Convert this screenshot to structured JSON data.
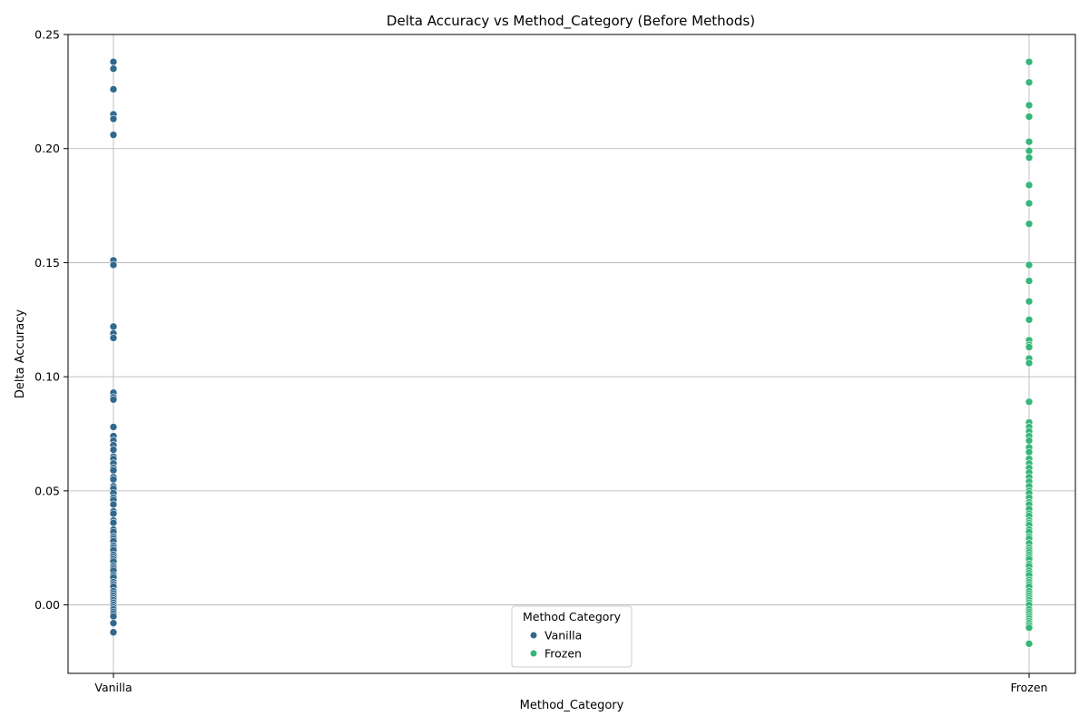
{
  "chart_data": {
    "type": "scatter",
    "title": "Delta Accuracy vs Method_Category (Before Methods)",
    "xlabel": "Method_Category",
    "ylabel": "Delta Accuracy",
    "categories": [
      "Vanilla",
      "Frozen"
    ],
    "ylim": [
      -0.03,
      0.25
    ],
    "yticks": [
      0.0,
      0.05,
      0.1,
      0.15,
      0.2,
      0.25
    ],
    "ytick_labels": [
      "0.00",
      "0.05",
      "0.10",
      "0.15",
      "0.20",
      "0.25"
    ],
    "grid": true,
    "legend": {
      "title": "Method Category",
      "placement": "bottom-center"
    },
    "series": [
      {
        "name": "Vanilla",
        "color": "#31688e",
        "category": "Vanilla",
        "values": [
          0.238,
          0.235,
          0.226,
          0.215,
          0.213,
          0.206,
          0.151,
          0.149,
          0.122,
          0.119,
          0.117,
          0.093,
          0.091,
          0.09,
          0.078,
          0.074,
          0.072,
          0.07,
          0.068,
          0.065,
          0.064,
          0.062,
          0.06,
          0.059,
          0.056,
          0.055,
          0.052,
          0.051,
          0.049,
          0.047,
          0.046,
          0.044,
          0.041,
          0.04,
          0.037,
          0.036,
          0.033,
          0.032,
          0.03,
          0.029,
          0.028,
          0.026,
          0.025,
          0.024,
          0.022,
          0.021,
          0.02,
          0.019,
          0.017,
          0.016,
          0.015,
          0.013,
          0.012,
          0.01,
          0.009,
          0.008,
          0.006,
          0.005,
          0.004,
          0.003,
          0.002,
          0.001,
          0.0,
          -0.001,
          -0.002,
          -0.003,
          -0.004,
          -0.005,
          -0.008,
          -0.012
        ]
      },
      {
        "name": "Frozen",
        "color": "#35b779",
        "category": "Frozen",
        "values": [
          0.238,
          0.229,
          0.219,
          0.214,
          0.203,
          0.199,
          0.196,
          0.184,
          0.176,
          0.167,
          0.149,
          0.142,
          0.133,
          0.125,
          0.116,
          0.114,
          0.113,
          0.108,
          0.106,
          0.089,
          0.08,
          0.078,
          0.076,
          0.074,
          0.072,
          0.069,
          0.067,
          0.064,
          0.062,
          0.06,
          0.058,
          0.056,
          0.054,
          0.052,
          0.05,
          0.049,
          0.047,
          0.045,
          0.044,
          0.042,
          0.04,
          0.039,
          0.037,
          0.036,
          0.035,
          0.033,
          0.032,
          0.03,
          0.029,
          0.027,
          0.025,
          0.024,
          0.023,
          0.022,
          0.021,
          0.02,
          0.018,
          0.017,
          0.015,
          0.014,
          0.013,
          0.011,
          0.01,
          0.009,
          0.008,
          0.006,
          0.005,
          0.004,
          0.003,
          0.002,
          0.001,
          0.0,
          -0.002,
          -0.003,
          -0.004,
          -0.005,
          -0.006,
          -0.007,
          -0.008,
          -0.009,
          -0.01,
          -0.017
        ]
      }
    ]
  }
}
